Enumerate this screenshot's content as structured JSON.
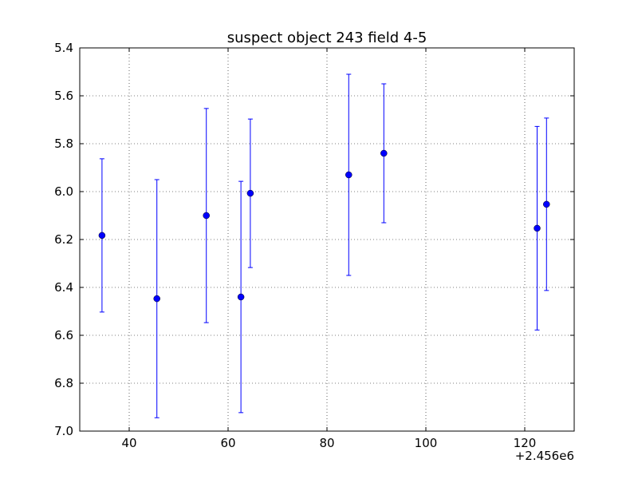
{
  "chart_data": {
    "type": "errorbar",
    "title": "suspect object 243 field 4-5",
    "x": [
      34.5,
      45.6,
      55.6,
      62.6,
      64.5,
      84.4,
      91.5,
      122.5,
      124.4
    ],
    "values": [
      6.183,
      6.447,
      6.1,
      6.44,
      6.007,
      5.93,
      5.84,
      6.153,
      6.053
    ],
    "errors": [
      0.32,
      0.497,
      0.447,
      0.483,
      0.31,
      0.42,
      0.29,
      0.425,
      0.36
    ],
    "color": "#0000ff",
    "xlim": [
      30,
      130
    ],
    "xticks": [
      40,
      60,
      80,
      100,
      120
    ],
    "x_offset_label": "+2.456e6",
    "ylim": [
      7.0,
      5.4
    ],
    "y_inverted": true,
    "yticks": [
      5.4,
      5.6,
      5.8,
      {
        "value": 6,
        "label": "6.0"
      },
      6.2,
      6.4,
      6.6,
      6.8,
      {
        "value": 7,
        "label": "7.0"
      }
    ],
    "grid": true
  }
}
